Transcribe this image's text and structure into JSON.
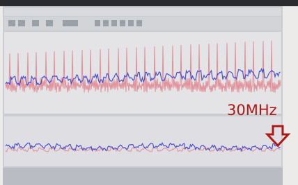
{
  "annotation": {
    "text": "30MHz"
  }
}
